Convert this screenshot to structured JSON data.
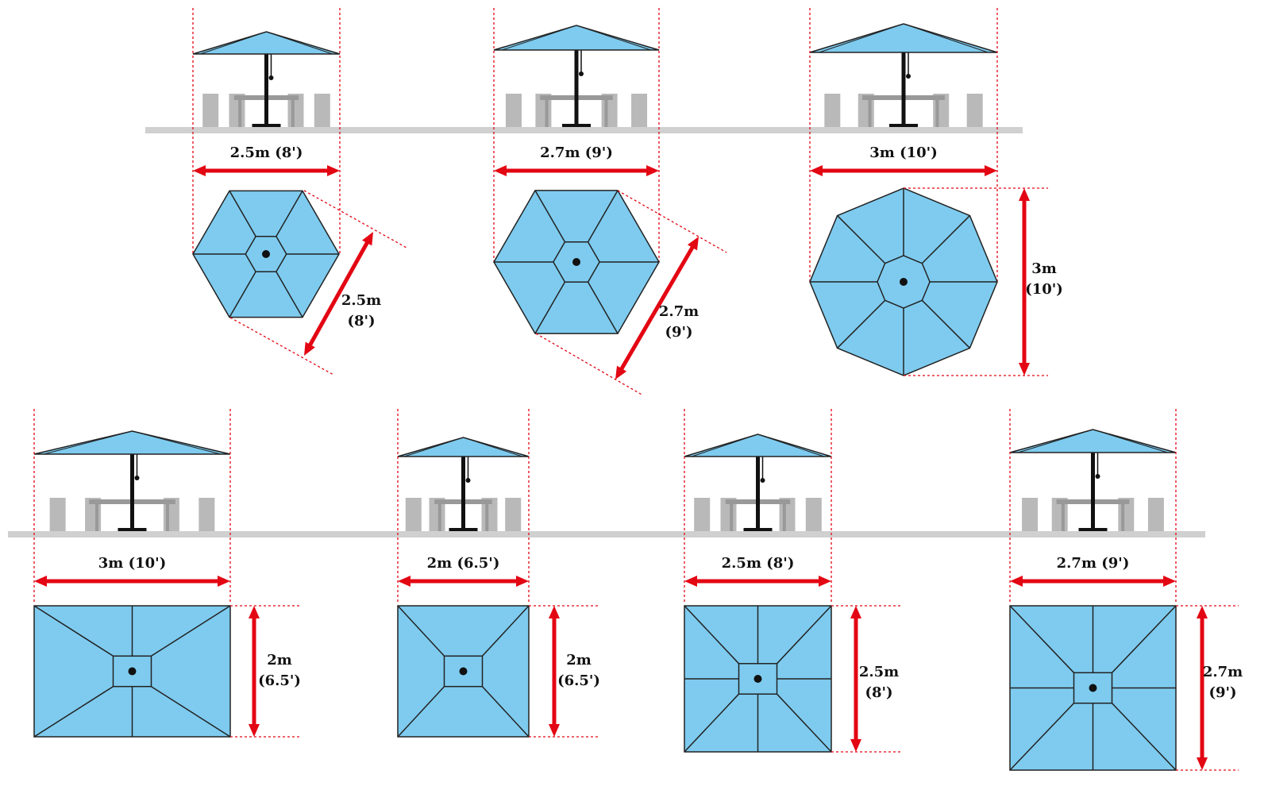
{
  "umbrellas": [
    {
      "width": "2.5m (8')",
      "depth": [
        "2.5m",
        "(8')"
      ]
    },
    {
      "width": "2.7m (9')",
      "depth": [
        "2.7m",
        "(9')"
      ]
    },
    {
      "width": "3m (10')",
      "depth": [
        "3m",
        "(10')"
      ]
    },
    {
      "width": "3m (10')",
      "depth": [
        "2m",
        "(6.5')"
      ]
    },
    {
      "width": "2m (6.5')",
      "depth": [
        "2m",
        "(6.5')"
      ]
    },
    {
      "width": "2.5m (8')",
      "depth": [
        "2.5m",
        "(8')"
      ]
    },
    {
      "width": "2.7m (9')",
      "depth": [
        "2.7m",
        "(9')"
      ]
    }
  ]
}
